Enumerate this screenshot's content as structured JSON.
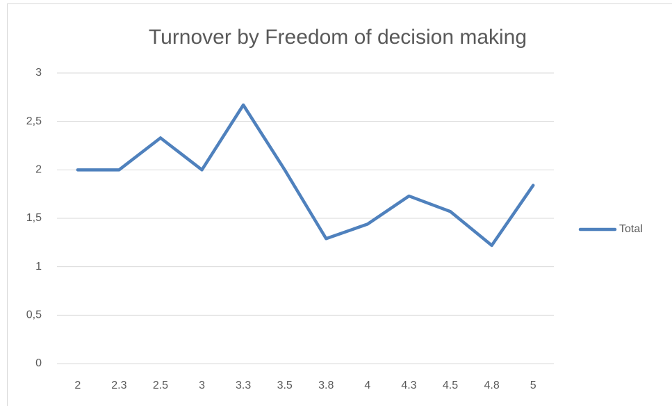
{
  "chart_data": {
    "type": "line",
    "title": "Turnover by Freedom of decision making",
    "categories": [
      "2",
      "2.3",
      "2.5",
      "3",
      "3.3",
      "3.5",
      "3.8",
      "4",
      "4.3",
      "4.5",
      "4.8",
      "5"
    ],
    "series": [
      {
        "name": "Total",
        "color": "#4f81bd",
        "values": [
          2,
          2,
          2.33,
          2,
          2.67,
          2,
          1.29,
          1.44,
          1.73,
          1.57,
          1.22,
          1.84
        ]
      }
    ],
    "ylim": [
      0,
      3
    ],
    "yticks": [
      0,
      {
        "value": 0.5,
        "label": "0,5"
      },
      1,
      {
        "value": 1.5,
        "label": "1,5"
      },
      2,
      {
        "value": 2.5,
        "label": "2,5"
      },
      3
    ],
    "grid": true,
    "legend": "right"
  }
}
